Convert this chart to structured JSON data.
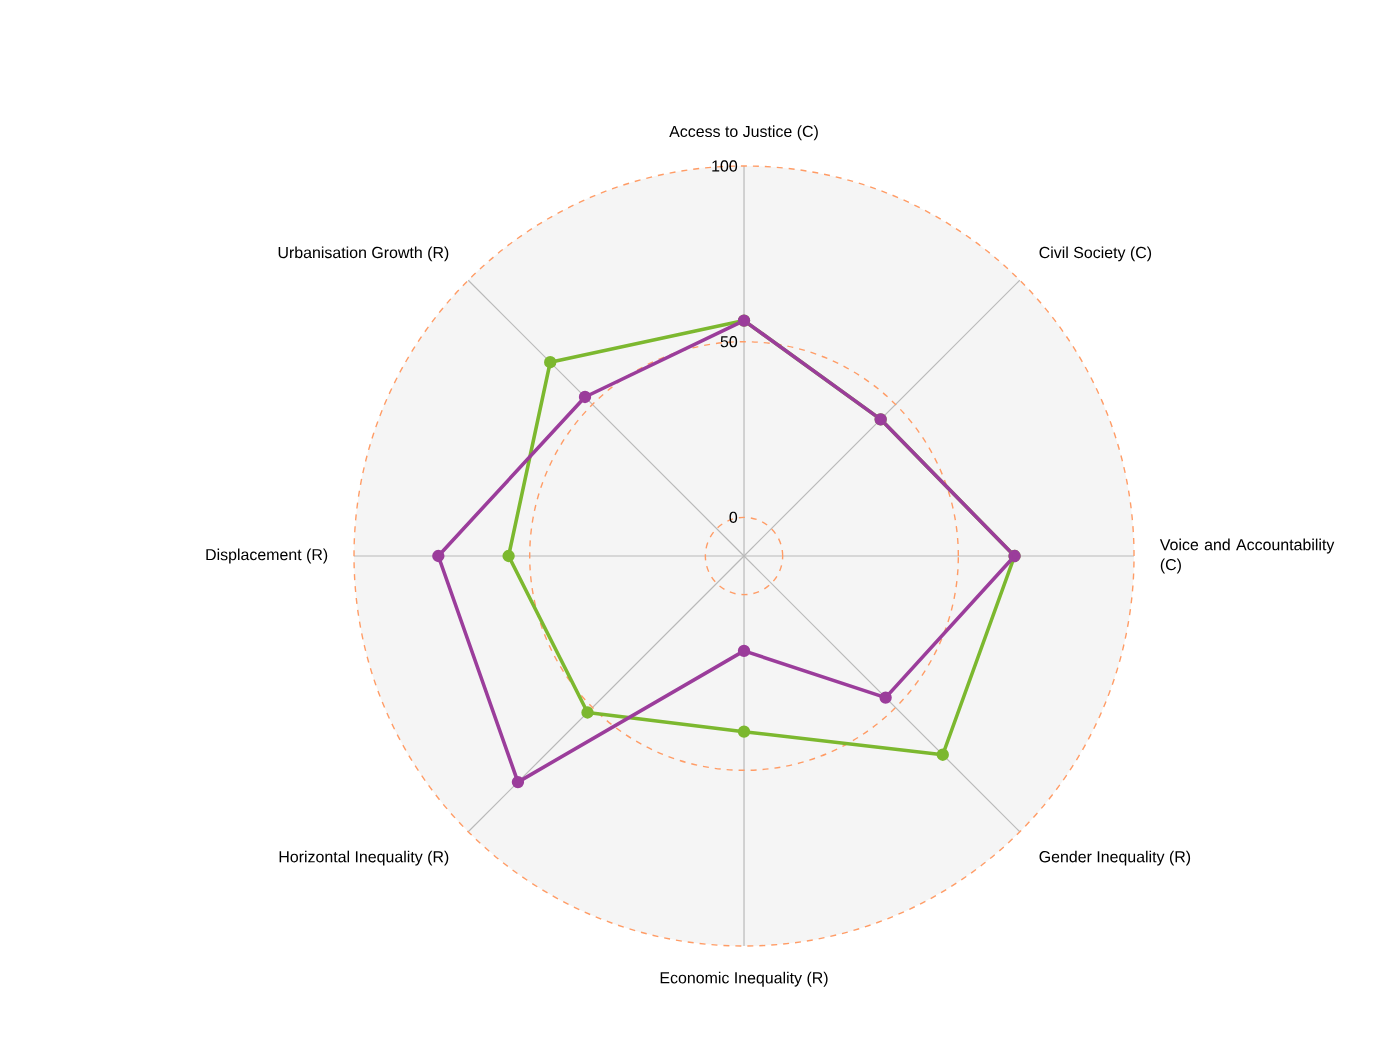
{
  "chart_data": {
    "type": "radar",
    "categories": [
      "Access to Justice (C)",
      "Civil Society (C)",
      "Voice and Accountability (C)",
      "Gender Inequality (R)",
      "Economic Inequality (R)",
      "Horizontal Inequality (R)",
      "Displacement (R)",
      "Urbanisation Growth (R)"
    ],
    "series": [
      {
        "color": "#7cb82f",
        "values": [
          56,
          44,
          66,
          69,
          39,
          52,
          56,
          67
        ]
      },
      {
        "color": "#9b3d9b",
        "values": [
          56,
          44,
          66,
          46,
          16,
          80,
          76,
          53
        ]
      }
    ],
    "ylim": [
      -11,
      100
    ],
    "yticks": [
      0,
      50,
      100
    ],
    "grid": true,
    "marker": "circle"
  }
}
